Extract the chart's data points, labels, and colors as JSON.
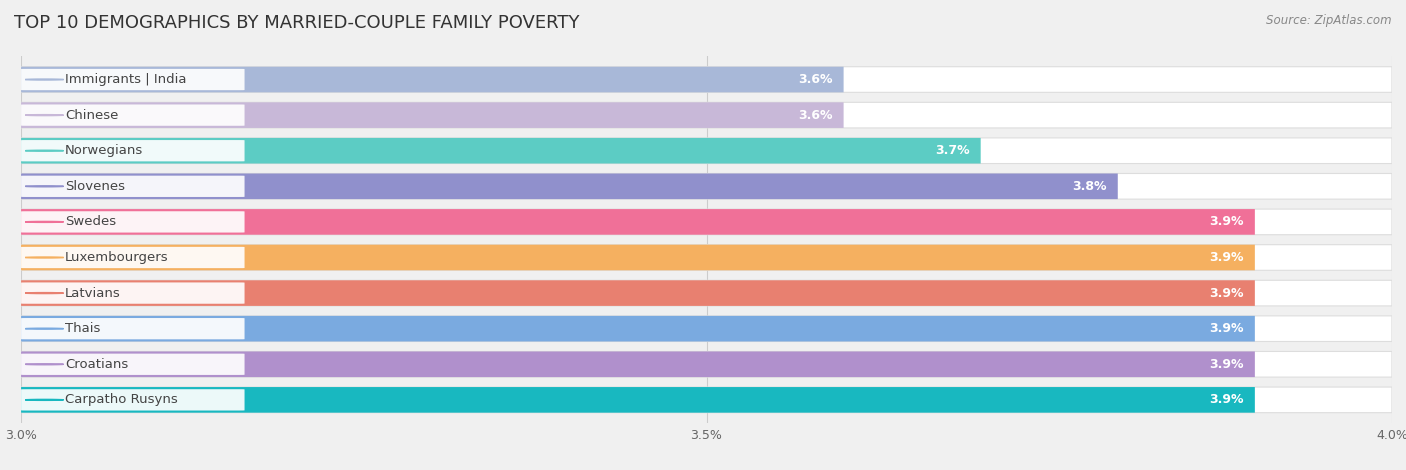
{
  "title": "TOP 10 DEMOGRAPHICS BY MARRIED-COUPLE FAMILY POVERTY",
  "source": "Source: ZipAtlas.com",
  "categories": [
    "Immigrants | India",
    "Chinese",
    "Norwegians",
    "Slovenes",
    "Swedes",
    "Luxembourgers",
    "Latvians",
    "Thais",
    "Croatians",
    "Carpatho Rusyns"
  ],
  "values": [
    3.6,
    3.6,
    3.7,
    3.8,
    3.9,
    3.9,
    3.9,
    3.9,
    3.9,
    3.9
  ],
  "bar_colors": [
    "#a8b8d8",
    "#c8b8d8",
    "#5cccc4",
    "#9090cc",
    "#f07098",
    "#f5b060",
    "#e88070",
    "#7aaae0",
    "#b090cc",
    "#18b8c0"
  ],
  "xlim": [
    3.0,
    4.0
  ],
  "xticks": [
    3.0,
    3.5,
    4.0
  ],
  "xticklabels": [
    "3.0%",
    "3.5%",
    "4.0%"
  ],
  "background_color": "#f0f0f0",
  "bar_bg_color": "#ffffff",
  "bar_bg_border": "#dddddd",
  "label_fontsize": 9.5,
  "value_fontsize": 9,
  "title_fontsize": 13
}
